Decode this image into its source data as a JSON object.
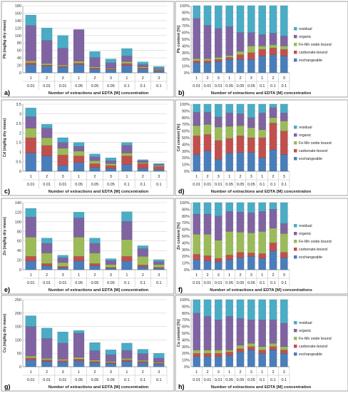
{
  "colors": {
    "exchangeable": "#4a7ebb",
    "carbonate": "#c0504d",
    "femn": "#9bbb59",
    "organic": "#8064a2",
    "residual": "#4bacc6"
  },
  "chart_data": [
    {
      "panel": "a)",
      "type": "bar",
      "stacked": true,
      "ylabel": "Pb (mg/kg dry mass)",
      "ylim": [
        0,
        180
      ],
      "yticks": [
        0,
        20,
        40,
        60,
        80,
        100,
        120,
        140,
        160,
        180
      ],
      "xlabel": "Number of extractions and EDTA [M] concentration",
      "extraction_labels": [
        "1",
        "2",
        "3",
        "1",
        "2",
        "3",
        "1",
        "2",
        "3"
      ],
      "concentration_labels": [
        "0.01",
        "0.01",
        "0.01",
        "0.05",
        "0.05",
        "0.05",
        "0.1",
        "0.1",
        "0.1"
      ],
      "series": [
        {
          "name": "exchangeable",
          "values": [
            22,
            18,
            15,
            22,
            10,
            8,
            20,
            10,
            5
          ]
        },
        {
          "name": "carbonate-bound",
          "values": [
            5,
            3,
            3,
            4,
            3,
            2,
            5,
            3,
            2
          ]
        },
        {
          "name": "Fe-Mn oxide bound",
          "values": [
            5,
            4,
            3,
            5,
            3,
            2,
            5,
            3,
            2
          ]
        },
        {
          "name": "organic",
          "values": [
            95,
            62,
            45,
            85,
            25,
            15,
            15,
            6,
            3
          ]
        },
        {
          "name": "residual",
          "values": [
            28,
            33,
            34,
            0,
            16,
            10,
            20,
            7,
            5
          ]
        }
      ]
    },
    {
      "panel": "b)",
      "type": "bar",
      "stacked": true,
      "percent": true,
      "ylabel": "Pb content [%]",
      "ylim": [
        0,
        100
      ],
      "yticks": [
        0,
        10,
        20,
        30,
        40,
        50,
        60,
        70,
        80,
        90,
        100
      ],
      "xlabel": "Number of extractions and EDTA [M] concentration",
      "extraction_labels": [
        "1",
        "2",
        "3",
        "1",
        "2",
        "3",
        "1",
        "2",
        "3"
      ],
      "concentration_labels": [
        "0.01",
        "0.01",
        "0.01",
        "0.05",
        "0.05",
        "0.05",
        "0.1",
        "0.1",
        "0.1"
      ],
      "legend": [
        "residual",
        "organic",
        "Fe-Mn oxide bound",
        "carbonate-bound",
        "exchangeable"
      ],
      "series": [
        {
          "name": "exchangeable",
          "values": [
            15,
            15,
            17,
            20,
            20,
            20,
            25,
            27,
            25
          ]
        },
        {
          "name": "carbonate-bound",
          "values": [
            3,
            3,
            3,
            3,
            7,
            10,
            10,
            10,
            10
          ]
        },
        {
          "name": "Fe-Mn oxide bound",
          "values": [
            3,
            3,
            3,
            3,
            5,
            10,
            5,
            5,
            5
          ]
        },
        {
          "name": "organic",
          "values": [
            60,
            50,
            43,
            43,
            28,
            20,
            17,
            17,
            15
          ]
        },
        {
          "name": "residual",
          "values": [
            19,
            29,
            34,
            31,
            40,
            40,
            43,
            41,
            45
          ]
        }
      ]
    },
    {
      "panel": "c)",
      "type": "bar",
      "stacked": true,
      "ylabel": "Cd (mg/kg dry mass)",
      "ylim": [
        0,
        3.5
      ],
      "yticks": [
        0,
        0.5,
        1,
        1.5,
        2,
        2.5,
        3,
        3.5
      ],
      "xlabel": "Number of extractions and EDTA [M] concentration",
      "extraction_labels": [
        "1",
        "2",
        "3",
        "1",
        "2",
        "3",
        "1",
        "2",
        "3"
      ],
      "concentration_labels": [
        "0.01",
        "0.01",
        "0.01",
        "0.05",
        "0.05",
        "0.05",
        "0.1",
        "0.1",
        "0.1"
      ],
      "series": [
        {
          "name": "exchangeable",
          "values": [
            0.95,
            0.8,
            0.3,
            0.45,
            0.2,
            0.15,
            0.35,
            0.15,
            0.1
          ]
        },
        {
          "name": "carbonate-bound",
          "values": [
            0.8,
            0.55,
            0.55,
            0.35,
            0.2,
            0.15,
            0.45,
            0.25,
            0.15
          ]
        },
        {
          "name": "Fe-Mn oxide bound",
          "values": [
            0.5,
            0.4,
            0.35,
            0.25,
            0.15,
            0.1,
            0.15,
            0.05,
            0.05
          ]
        },
        {
          "name": "organic",
          "values": [
            0.6,
            0.5,
            0.3,
            0.25,
            0.2,
            0.15,
            0.4,
            0.1,
            0.05
          ]
        },
        {
          "name": "residual",
          "values": [
            0.45,
            0.2,
            0.25,
            0.2,
            0.15,
            0.15,
            0.15,
            0.05,
            0.05
          ]
        }
      ]
    },
    {
      "panel": "d)",
      "type": "bar",
      "stacked": true,
      "percent": true,
      "ylabel": "Cd content [%]",
      "ylim": [
        0,
        100
      ],
      "yticks": [
        0,
        10,
        20,
        30,
        40,
        50,
        60,
        70,
        80,
        90,
        100
      ],
      "xlabel": "Number of extractions and EDTA [M] concentration",
      "extraction_labels": [
        "1",
        "2",
        "3",
        "1",
        "2",
        "3",
        "1",
        "2",
        "3"
      ],
      "concentration_labels": [
        "0.01",
        "0.01",
        "0.01",
        "0.05",
        "0.05",
        "0.05",
        "0.1",
        "0.1",
        "0.1"
      ],
      "legend": [
        "residual",
        "organic",
        "Fe-Mn oxide bound",
        "carbonate-bound",
        "exchangeable"
      ],
      "series": [
        {
          "name": "exchangeable",
          "values": [
            25,
            30,
            18,
            27,
            28,
            28,
            20,
            32,
            25
          ]
        },
        {
          "name": "carbonate-bound",
          "values": [
            28,
            25,
            28,
            22,
            25,
            22,
            30,
            40,
            35
          ]
        },
        {
          "name": "Fe-Mn oxide bound",
          "values": [
            15,
            15,
            20,
            18,
            15,
            15,
            12,
            8,
            15
          ]
        },
        {
          "name": "organic",
          "values": [
            20,
            18,
            15,
            20,
            18,
            15,
            25,
            15,
            12
          ]
        },
        {
          "name": "residual",
          "values": [
            12,
            12,
            19,
            13,
            14,
            20,
            13,
            5,
            13
          ]
        }
      ]
    },
    {
      "panel": "e)",
      "type": "bar",
      "stacked": true,
      "ylabel": "Zn (mg/kg dry mass)",
      "ylim": [
        0,
        140
      ],
      "yticks": [
        0,
        20,
        40,
        60,
        80,
        100,
        120,
        140
      ],
      "xlabel": "Number of extractions and EDTA [M] concentration",
      "extraction_labels": [
        "1",
        "2",
        "3",
        "1",
        "2",
        "3",
        "1",
        "2",
        "3"
      ],
      "concentration_labels": [
        "0.01",
        "0.01",
        "0.01",
        "0.05",
        "0.05",
        "0.05",
        "0.1",
        "0.1",
        "0.1"
      ],
      "series": [
        {
          "name": "exchangeable",
          "values": [
            18,
            8,
            4,
            18,
            8,
            3,
            18,
            6,
            3
          ]
        },
        {
          "name": "carbonate-bound",
          "values": [
            10,
            5,
            3,
            10,
            5,
            2,
            10,
            4,
            2
          ]
        },
        {
          "name": "Fe-Mn oxide bound",
          "values": [
            40,
            22,
            8,
            40,
            22,
            6,
            35,
            18,
            6
          ]
        },
        {
          "name": "organic",
          "values": [
            42,
            20,
            10,
            40,
            20,
            8,
            38,
            16,
            6
          ]
        },
        {
          "name": "residual",
          "values": [
            18,
            11,
            5,
            12,
            11,
            4,
            20,
            6,
            4
          ]
        }
      ]
    },
    {
      "panel": "f)",
      "type": "bar",
      "stacked": true,
      "percent": true,
      "ylabel": "Zn content [%]",
      "ylim": [
        0,
        100
      ],
      "yticks": [
        0,
        10,
        20,
        30,
        40,
        50,
        60,
        70,
        80,
        90,
        100
      ],
      "xlabel": "Number of extractions and EDTA [M] concentrations",
      "extraction_labels": [
        "1",
        "2",
        "3",
        "1",
        "2",
        "3",
        "1",
        "2",
        "3"
      ],
      "concentration_labels": [
        "0.01",
        "0.01",
        "0.01",
        "0.05",
        "0.05",
        "0.05",
        "0.1",
        "0.1",
        "0.1"
      ],
      "legend": [
        "residual",
        "organic",
        "Fe-Mn oxide bound",
        "carbonate-bound",
        "exchangeable"
      ],
      "series": [
        {
          "name": "exchangeable",
          "values": [
            15,
            13,
            12,
            15,
            18,
            20,
            17,
            28,
            18
          ]
        },
        {
          "name": "carbonate-bound",
          "values": [
            8,
            8,
            5,
            7,
            8,
            5,
            7,
            12,
            8
          ]
        },
        {
          "name": "Fe-Mn oxide bound",
          "values": [
            30,
            32,
            27,
            35,
            30,
            30,
            33,
            22,
            28
          ]
        },
        {
          "name": "organic",
          "values": [
            30,
            30,
            36,
            30,
            30,
            30,
            30,
            28,
            15
          ]
        },
        {
          "name": "residual",
          "values": [
            17,
            17,
            20,
            13,
            14,
            15,
            13,
            10,
            31
          ]
        }
      ]
    },
    {
      "panel": "g)",
      "type": "bar",
      "stacked": true,
      "ylabel": "Cu (mg/kg dry mass)",
      "ylim": [
        0,
        250
      ],
      "yticks": [
        0,
        50,
        100,
        150,
        200,
        250
      ],
      "xlabel": "Number of extractions and EDTA [M] concentration",
      "extraction_labels": [
        "1",
        "2",
        "3",
        "1",
        "2",
        "3",
        "1",
        "2",
        "3"
      ],
      "concentration_labels": [
        "0.01",
        "0.01",
        "0.01",
        "0.05",
        "0.05",
        "0.05",
        "0.1",
        "0.1",
        "0.1"
      ],
      "series": [
        {
          "name": "exchangeable",
          "values": [
            25,
            20,
            18,
            22,
            15,
            12,
            20,
            15,
            10
          ]
        },
        {
          "name": "carbonate-bound",
          "values": [
            8,
            6,
            5,
            7,
            5,
            4,
            6,
            5,
            4
          ]
        },
        {
          "name": "Fe-Mn oxide bound",
          "values": [
            7,
            5,
            5,
            6,
            5,
            4,
            5,
            4,
            3
          ]
        },
        {
          "name": "organic",
          "values": [
            110,
            75,
            60,
            90,
            35,
            25,
            30,
            25,
            15
          ]
        },
        {
          "name": "residual",
          "values": [
            40,
            38,
            42,
            10,
            30,
            18,
            27,
            16,
            18
          ]
        }
      ]
    },
    {
      "panel": "h)",
      "type": "bar",
      "stacked": true,
      "percent": true,
      "ylabel": "Cu content [%]",
      "ylim": [
        0,
        100
      ],
      "yticks": [
        0,
        10,
        20,
        30,
        40,
        50,
        60,
        70,
        80,
        90,
        100
      ],
      "xlabel": "Number of extractions and EDTA [M] concentration",
      "extraction_labels": [
        "1",
        "2",
        "3",
        "1",
        "2",
        "3",
        "1",
        "2",
        "3"
      ],
      "concentration_labels": [
        "0.01",
        "0.01",
        "0.01",
        "0.05",
        "0.05",
        "0.05",
        "0.1",
        "0.1",
        "0.1"
      ],
      "legend": [
        "residual",
        "organic",
        "Fe-Mn oxide bound",
        "carbonate-bound",
        "exchangeable"
      ],
      "series": [
        {
          "name": "exchangeable",
          "values": [
            15,
            15,
            15,
            17,
            22,
            25,
            20,
            25,
            20
          ]
        },
        {
          "name": "carbonate-bound",
          "values": [
            5,
            5,
            5,
            5,
            5,
            5,
            5,
            5,
            5
          ]
        },
        {
          "name": "Fe-Mn oxide bound",
          "values": [
            5,
            5,
            5,
            3,
            5,
            5,
            5,
            5,
            5
          ]
        },
        {
          "name": "organic",
          "values": [
            55,
            50,
            45,
            50,
            40,
            35,
            40,
            35,
            35
          ]
        },
        {
          "name": "residual",
          "values": [
            20,
            25,
            30,
            25,
            28,
            30,
            30,
            30,
            35
          ]
        }
      ]
    }
  ]
}
